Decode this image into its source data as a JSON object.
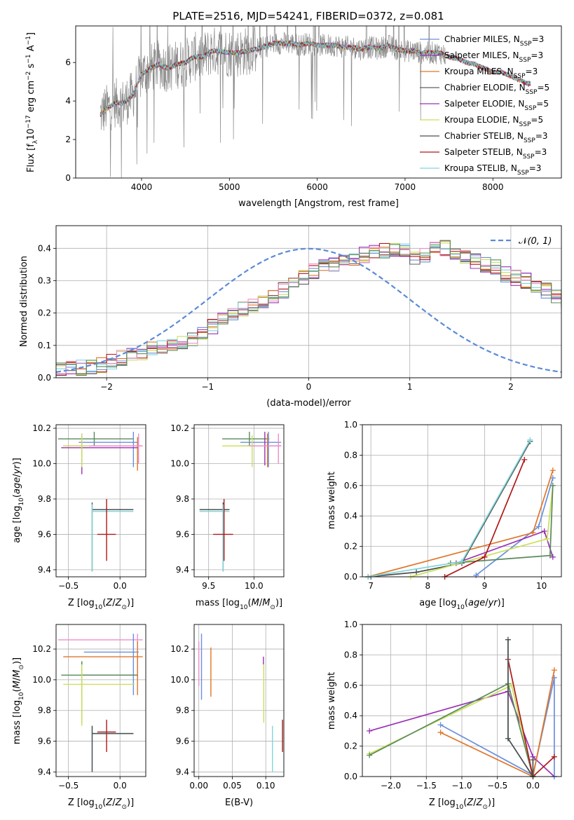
{
  "title": "PLATE=2516, MJD=54241, FIBERID=0372, z=0.081",
  "colors": {
    "Chabrier MILES": "#6a8fdc",
    "Salpeter MILES": "#9b30b5",
    "Kroupa MILES": "#e07628",
    "Chabrier ELODIE": "#606060",
    "Salpeter ELODIE": "#9b30b5",
    "Kroupa ELODIE": "#c9e05a",
    "Chabrier STELIB": "#4d4d4d",
    "Salpeter STELIB": "#b01818",
    "Kroupa STELIB": "#7fd6dc"
  },
  "chart_data": [
    {
      "type": "line",
      "panel": "spectrum",
      "xlabel": "wavelength [Angstrom, rest frame]",
      "ylabel": "Flux [f_λ 10^-17 erg cm^-2 s^-1 A^-1]",
      "xlim": [
        3250,
        8780
      ],
      "ylim": [
        0,
        7.9
      ],
      "xticks": [
        4000,
        5000,
        6000,
        7000,
        8000
      ],
      "yticks": [
        0,
        2,
        4,
        6
      ],
      "grid": false,
      "legend_position": "right",
      "continuum": {
        "wavelength": [
          3530,
          3600,
          3700,
          3800,
          3900,
          4000,
          4100,
          4200,
          4300,
          4400,
          4500,
          4600,
          4700,
          4800,
          4900,
          5000,
          5100,
          5200,
          5300,
          5400,
          5500,
          5600,
          5700,
          5800,
          5900,
          6000,
          6100,
          6200,
          6300,
          6400,
          6500,
          6600,
          6700,
          6800,
          6900,
          7000,
          7100,
          7200,
          7300,
          7400,
          7500,
          7600,
          7700,
          7800,
          7900,
          8000,
          8100,
          8200,
          8300,
          8400
        ],
        "flux": [
          3.3,
          3.6,
          3.9,
          3.9,
          4.3,
          5.4,
          5.7,
          5.9,
          5.7,
          5.9,
          6.0,
          6.3,
          6.3,
          6.6,
          6.6,
          6.5,
          6.5,
          6.6,
          6.7,
          6.8,
          7.0,
          7.0,
          7.0,
          6.9,
          7.0,
          6.9,
          6.9,
          6.9,
          6.8,
          6.8,
          6.7,
          6.8,
          6.7,
          6.9,
          6.7,
          6.6,
          6.6,
          6.5,
          6.5,
          6.5,
          6.3,
          6.2,
          6.0,
          5.9,
          5.7,
          5.5,
          5.5,
          5.3,
          5.1,
          4.9
        ]
      },
      "series": [
        {
          "name": "Chabrier MILES, N_SSP=3",
          "label_main": "Chabrier MILES, N",
          "label_sub": "SSP",
          "label_end": "=3"
        },
        {
          "name": "Salpeter MILES, N_SSP=3",
          "label_main": "Salpeter MILES, N",
          "label_sub": "SSP",
          "label_end": "=3"
        },
        {
          "name": "Kroupa MILES, N_SSP=3",
          "label_main": "Kroupa MILES, N",
          "label_sub": "SSP",
          "label_end": "=3"
        },
        {
          "name": "Chabrier ELODIE, N_SSP=5",
          "label_main": "Chabrier ELODIE, N",
          "label_sub": "SSP",
          "label_end": "=5"
        },
        {
          "name": "Salpeter ELODIE, N_SSP=5",
          "label_main": "Salpeter ELODIE, N",
          "label_sub": "SSP",
          "label_end": "=5"
        },
        {
          "name": "Kroupa ELODIE, N_SSP=5",
          "label_main": "Kroupa ELODIE, N",
          "label_sub": "SSP",
          "label_end": "=5"
        },
        {
          "name": "Chabrier STELIB, N_SSP=3",
          "label_main": "Chabrier STELIB, N",
          "label_sub": "SSP",
          "label_end": "=3"
        },
        {
          "name": "Salpeter STELIB, N_SSP=3",
          "label_main": "Salpeter STELIB, N",
          "label_sub": "SSP",
          "label_end": "=3"
        },
        {
          "name": "Kroupa STELIB, N_SSP=3",
          "label_main": "Kroupa STELIB, N",
          "label_sub": "SSP",
          "label_end": "=3"
        }
      ]
    },
    {
      "type": "line",
      "panel": "residual histogram",
      "xlabel": "(data-model)/error",
      "ylabel": "Normed distribution",
      "xlim": [
        -2.5,
        2.5
      ],
      "ylim": [
        0,
        0.47
      ],
      "xticks": [
        -2,
        -1,
        0,
        1,
        2
      ],
      "yticks": [
        0.0,
        0.1,
        0.2,
        0.3,
        0.4
      ],
      "grid": true,
      "legend_position": "top-right",
      "reference": {
        "name": "N(0,1)",
        "mu": 0,
        "sigma": 1
      },
      "bin_width": 0.1,
      "bin_start": -2.5,
      "histogram_approx_values": [
        0.025,
        0.03,
        0.03,
        0.03,
        0.04,
        0.05,
        0.06,
        0.07,
        0.08,
        0.09,
        0.09,
        0.1,
        0.11,
        0.12,
        0.14,
        0.16,
        0.18,
        0.2,
        0.21,
        0.22,
        0.23,
        0.25,
        0.27,
        0.29,
        0.31,
        0.33,
        0.34,
        0.35,
        0.36,
        0.37,
        0.38,
        0.39,
        0.39,
        0.4,
        0.39,
        0.37,
        0.38,
        0.41,
        0.4,
        0.38,
        0.37,
        0.36,
        0.35,
        0.34,
        0.32,
        0.31,
        0.3,
        0.28,
        0.27,
        0.25,
        0.23,
        0.21,
        0.19,
        0.17,
        0.15,
        0.13,
        0.11,
        0.1,
        0.08,
        0.07,
        0.06,
        0.05,
        0.045,
        0.04,
        0.035,
        0.03
      ]
    },
    {
      "type": "scatter",
      "panel": "age vs metallicity",
      "xlabel": "Z [log10(Z/Z⊙)]",
      "ylabel": "age  [log10(age/yr)]",
      "xlim": [
        -0.62,
        0.25
      ],
      "ylim": [
        9.36,
        10.22
      ],
      "xticks": [
        -0.5,
        0.0
      ],
      "yticks": [
        9.4,
        9.6,
        9.8,
        10.0,
        10.2
      ],
      "grid": true
    },
    {
      "type": "scatter",
      "panel": "age vs mass",
      "xlabel": "mass [log10(M/M⊙)]",
      "xlim": [
        9.34,
        10.33
      ],
      "ylim": [
        9.36,
        10.22
      ],
      "xticks": [
        9.5,
        10.0
      ],
      "yticks": [
        9.4,
        9.6,
        9.8,
        10.0,
        10.2
      ],
      "grid": true
    },
    {
      "type": "line",
      "panel": "mass weight vs age",
      "xlabel": "age  [log10(age/yr)]",
      "ylabel": "mass weight",
      "xlim": [
        6.85,
        10.35
      ],
      "ylim": [
        0,
        1.0
      ],
      "xticks": [
        7,
        8,
        9,
        10
      ],
      "yticks": [
        0.0,
        0.2,
        0.4,
        0.6,
        0.8,
        1.0
      ],
      "grid": true,
      "series": [
        {
          "color": "#6a8fdc",
          "x": [
            8.85,
            9.95,
            10.2
          ],
          "y": [
            0.01,
            0.33,
            0.65
          ]
        },
        {
          "color": "#9b30b5",
          "x": [
            8.5,
            10.05,
            10.2
          ],
          "y": [
            0.09,
            0.3,
            0.13
          ]
        },
        {
          "color": "#e07628",
          "x": [
            6.95,
            9.85,
            10.2
          ],
          "y": [
            0.0,
            0.29,
            0.7
          ]
        },
        {
          "color": "#4d4d4d",
          "x": [
            6.95,
            7.8,
            8.6,
            9.8
          ],
          "y": [
            0.0,
            0.03,
            0.09,
            0.89
          ]
        },
        {
          "color": "#c9e05a",
          "x": [
            7.7,
            10.1,
            10.2
          ],
          "y": [
            0.0,
            0.25,
            0.6
          ]
        },
        {
          "color": "#5a8a5a",
          "x": [
            8.4,
            10.15,
            10.2
          ],
          "y": [
            0.09,
            0.14,
            0.6
          ]
        },
        {
          "color": "#b01818",
          "x": [
            8.3,
            9.0,
            9.7
          ],
          "y": [
            0.0,
            0.13,
            0.77
          ]
        },
        {
          "color": "#7fd6dc",
          "x": [
            6.95,
            8.6,
            9.8
          ],
          "y": [
            0.0,
            0.1,
            0.9
          ]
        }
      ]
    },
    {
      "type": "scatter",
      "panel": "mass vs metallicity",
      "xlabel": "Z [log10(Z/Z⊙)]",
      "ylabel": "mass [log10(M/M⊙)]",
      "xlim": [
        -0.62,
        0.25
      ],
      "ylim": [
        9.37,
        10.36
      ],
      "xticks": [
        -0.5,
        0.0
      ],
      "yticks": [
        9.4,
        9.6,
        9.8,
        10.0,
        10.2
      ],
      "grid": true
    },
    {
      "type": "scatter",
      "panel": "mass vs extinction",
      "xlabel": "E(B-V)",
      "xlim": [
        -0.007,
        0.127
      ],
      "ylim": [
        9.37,
        10.36
      ],
      "xticks": [
        0.0,
        0.05,
        0.1
      ],
      "yticks": [
        9.4,
        9.6,
        9.8,
        10.0,
        10.2
      ],
      "grid": true,
      "points": [
        {
          "color": "#6a8fdc",
          "x": 0.004,
          "ylo": 9.87,
          "yhi": 10.3
        },
        {
          "color": "#e07628",
          "x": 0.018,
          "ylo": 9.89,
          "yhi": 10.21
        },
        {
          "color": "#9b30b5",
          "x": 0.0965,
          "ylo": 10.1,
          "yhi": 10.15
        },
        {
          "color": "#c9e05a",
          "x": 0.097,
          "ylo": 9.72,
          "yhi": 10.1
        },
        {
          "color": "#7fd6dc",
          "x": 0.11,
          "ylo": 9.4,
          "yhi": 9.7
        },
        {
          "color": "#b01818",
          "x": 0.125,
          "ylo": 9.53,
          "yhi": 9.74
        },
        {
          "color": "#ee8ecb",
          "x": 0.0,
          "ylo": 9.96,
          "yhi": 10.25
        }
      ]
    },
    {
      "type": "line",
      "panel": "mass weight vs metallicity",
      "xlabel": "Z [log10(Z/Z⊙)]",
      "ylabel": "mass weight",
      "xlim": [
        -2.4,
        0.4
      ],
      "ylim": [
        0,
        1.0
      ],
      "xticks": [
        -2.0,
        -1.5,
        -1.0,
        -0.5,
        0.0
      ],
      "yticks": [
        0.0,
        0.2,
        0.4,
        0.6,
        0.8,
        1.0
      ],
      "grid": true,
      "series": [
        {
          "color": "#9b30b5",
          "x": [
            -2.3,
            -0.35,
            0.0,
            0.3
          ],
          "y": [
            0.3,
            0.56,
            0.13,
            0.0
          ]
        },
        {
          "color": "#6a8fdc",
          "x": [
            -1.3,
            0.0,
            0.3,
            0.3
          ],
          "y": [
            0.34,
            0.01,
            0.65,
            0.0
          ]
        },
        {
          "color": "#e07628",
          "x": [
            -1.3,
            0.0,
            0.3
          ],
          "y": [
            0.29,
            0.0,
            0.7
          ]
        },
        {
          "color": "#c9e05a",
          "x": [
            -2.3,
            -0.3,
            0.0
          ],
          "y": [
            0.15,
            0.6,
            0.0
          ]
        },
        {
          "color": "#5a8a5a",
          "x": [
            -2.3,
            -0.35,
            0.0
          ],
          "y": [
            0.14,
            0.61,
            0.0
          ]
        },
        {
          "color": "#b01818",
          "x": [
            -0.35,
            0.0,
            0.3
          ],
          "y": [
            0.77,
            0.0,
            0.13
          ]
        },
        {
          "color": "#7fd6dc",
          "x": [
            -0.35,
            -0.35,
            0.0
          ],
          "y": [
            0.9,
            0.25,
            0.0
          ]
        },
        {
          "color": "#4d4d4d",
          "x": [
            -0.35,
            -0.35,
            0.0,
            0.0
          ],
          "y": [
            0.9,
            0.25,
            0.0,
            0.11
          ]
        }
      ]
    }
  ],
  "errorbars": {
    "age_vs_z": [
      {
        "color": "#5a8a5a",
        "x": -0.25,
        "xlo": -0.6,
        "xhi": 0.13,
        "y": 10.14,
        "ylo": 10.1,
        "yhi": 10.18
      },
      {
        "color": "#6a8fdc",
        "x": 0.13,
        "xlo": -0.4,
        "xhi": 0.18,
        "y": 10.12,
        "ylo": 9.98,
        "yhi": 10.18
      },
      {
        "color": "#e07628",
        "x": 0.17,
        "xlo": -0.55,
        "xhi": 0.22,
        "y": 10.1,
        "ylo": 9.96,
        "yhi": 10.15
      },
      {
        "color": "#9b30b5",
        "x": -0.37,
        "xlo": -0.57,
        "xhi": 0.17,
        "y": 10.09,
        "ylo": 9.94,
        "yhi": 10.17
      },
      {
        "color": "#c9e05a",
        "x": -0.37,
        "xlo": -0.55,
        "xhi": 0.14,
        "y": 10.1,
        "ylo": 9.98,
        "yhi": 10.17
      },
      {
        "color": "#ee8ecb",
        "x": 0.18,
        "xlo": -0.3,
        "xhi": 0.22,
        "y": 10.1,
        "ylo": 10.0,
        "yhi": 10.17
      },
      {
        "color": "#4d4d4d",
        "x": -0.27,
        "xlo": -0.27,
        "xhi": 0.13,
        "y": 9.74,
        "ylo": 9.39,
        "yhi": 9.78
      },
      {
        "color": "#7fd6dc",
        "x": -0.27,
        "xlo": -0.27,
        "xhi": 0.13,
        "y": 9.73,
        "ylo": 9.39,
        "yhi": 9.77
      },
      {
        "color": "#b01818",
        "x": -0.13,
        "xlo": -0.22,
        "xhi": -0.04,
        "y": 9.6,
        "ylo": 9.45,
        "yhi": 9.8
      }
    ],
    "age_vs_mass": [
      {
        "color": "#5a8a5a",
        "x": 9.95,
        "xlo": 9.65,
        "xhi": 10.17,
        "y": 10.14,
        "ylo": 10.1,
        "yhi": 10.18
      },
      {
        "color": "#6a8fdc",
        "x": 10.16,
        "xlo": 9.85,
        "xhi": 10.3,
        "y": 10.12,
        "ylo": 9.98,
        "yhi": 10.18
      },
      {
        "color": "#e07628",
        "x": 10.15,
        "xlo": 9.95,
        "xhi": 10.3,
        "y": 10.1,
        "ylo": 9.98,
        "yhi": 10.17
      },
      {
        "color": "#9b30b5",
        "x": 10.12,
        "xlo": 9.85,
        "xhi": 10.3,
        "y": 10.1,
        "ylo": 9.99,
        "yhi": 10.18
      },
      {
        "color": "#c9e05a",
        "x": 9.98,
        "xlo": 9.65,
        "xhi": 10.12,
        "y": 10.1,
        "ylo": 9.98,
        "yhi": 10.16
      },
      {
        "color": "#ee8ecb",
        "x": 10.27,
        "xlo": 9.95,
        "xhi": 10.3,
        "y": 10.1,
        "ylo": 10.0,
        "yhi": 10.17
      },
      {
        "color": "#4d4d4d",
        "x": 9.66,
        "xlo": 9.4,
        "xhi": 9.73,
        "y": 9.74,
        "ylo": 9.39,
        "yhi": 9.78
      },
      {
        "color": "#7fd6dc",
        "x": 9.66,
        "xlo": 9.4,
        "xhi": 9.73,
        "y": 9.73,
        "ylo": 9.39,
        "yhi": 9.77
      },
      {
        "color": "#b01818",
        "x": 9.67,
        "xlo": 9.55,
        "xhi": 9.77,
        "y": 9.6,
        "ylo": 9.45,
        "yhi": 9.8
      }
    ],
    "mass_vs_z": [
      {
        "color": "#ee8ecb",
        "x": 0.17,
        "xlo": -0.6,
        "xhi": 0.22,
        "y": 10.26,
        "ylo": 10.0,
        "yhi": 10.3
      },
      {
        "color": "#6a8fdc",
        "x": 0.13,
        "xlo": -0.35,
        "xhi": 0.18,
        "y": 10.18,
        "ylo": 9.9,
        "yhi": 10.3
      },
      {
        "color": "#e07628",
        "x": 0.17,
        "xlo": -0.55,
        "xhi": 0.22,
        "y": 10.15,
        "ylo": 9.9,
        "yhi": 10.25
      },
      {
        "color": "#9b30b5",
        "x": -0.37,
        "xlo": -0.37,
        "xhi": 0.17,
        "y": 10.03,
        "ylo": 9.85,
        "yhi": 10.12
      },
      {
        "color": "#5a8a5a",
        "x": -0.37,
        "xlo": -0.57,
        "xhi": 0.17,
        "y": 10.03,
        "ylo": 9.72,
        "yhi": 10.12
      },
      {
        "color": "#c9e05a",
        "x": -0.37,
        "xlo": -0.55,
        "xhi": 0.14,
        "y": 9.97,
        "ylo": 9.7,
        "yhi": 10.1
      },
      {
        "color": "#b01818",
        "x": -0.13,
        "xlo": -0.22,
        "xhi": -0.04,
        "y": 9.66,
        "ylo": 9.53,
        "yhi": 9.74
      },
      {
        "color": "#7fd6dc",
        "x": -0.27,
        "xlo": -0.27,
        "xhi": 0.13,
        "y": 9.65,
        "ylo": 9.4,
        "yhi": 9.7
      },
      {
        "color": "#4d4d4d",
        "x": -0.27,
        "xlo": -0.27,
        "xhi": 0.13,
        "y": 9.65,
        "ylo": 9.4,
        "yhi": 9.7
      }
    ]
  }
}
